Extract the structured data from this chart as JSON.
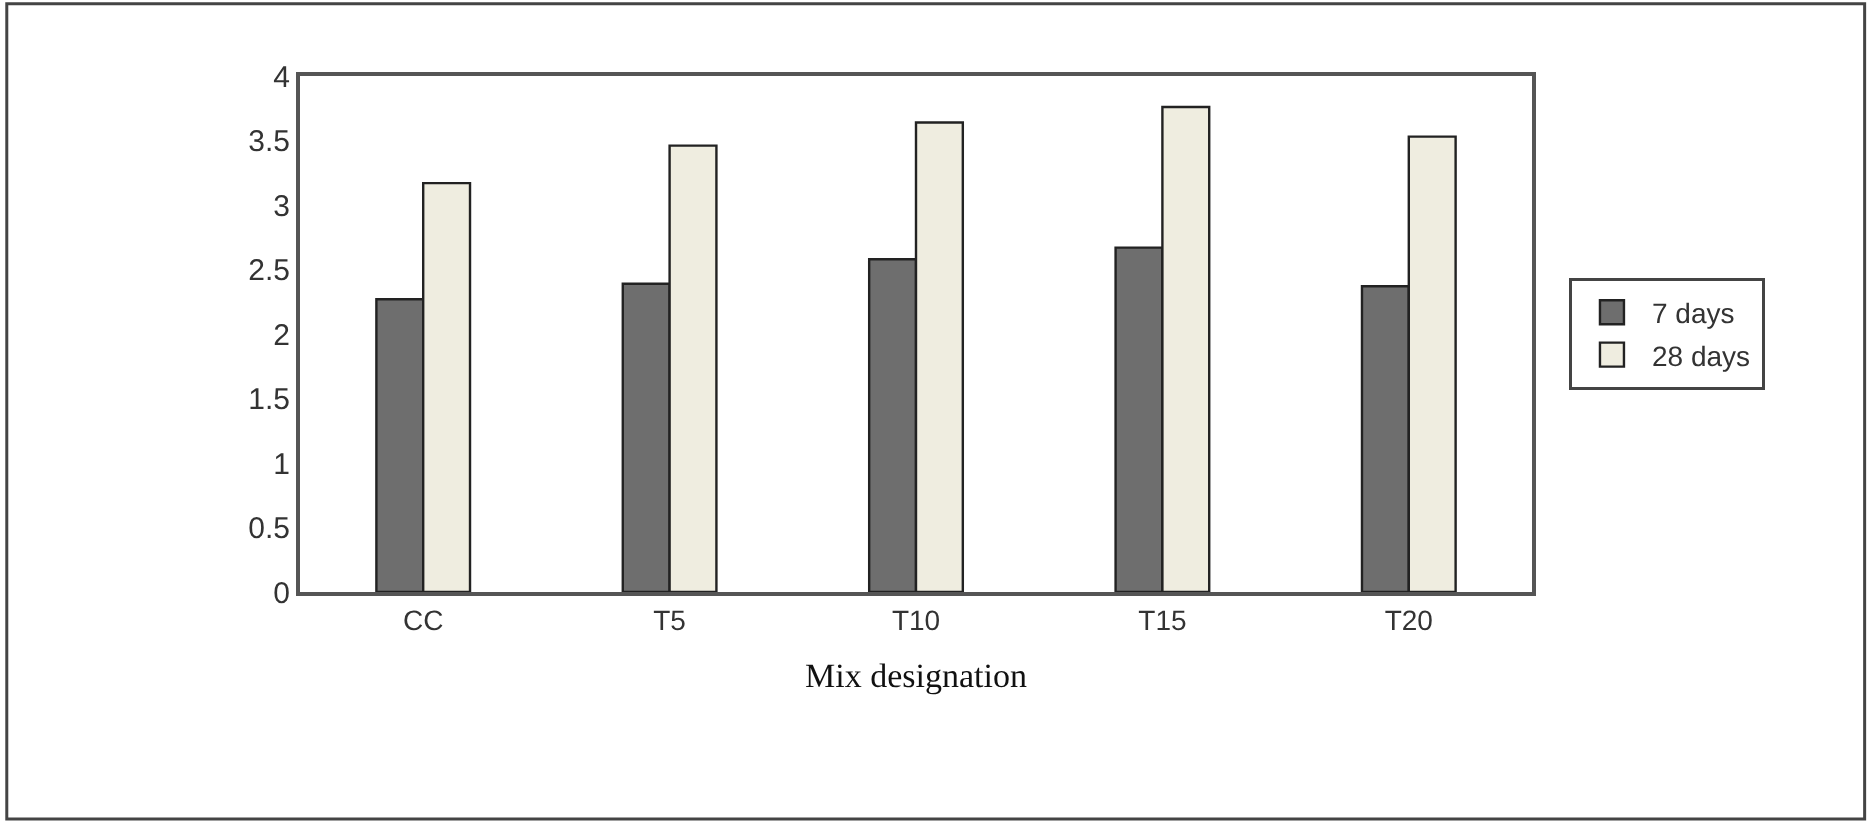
{
  "chart_data": {
    "type": "bar",
    "xlabel": "Mix designation",
    "categories": [
      "CC",
      "T5",
      "T10",
      "T15",
      "T20"
    ],
    "series": [
      {
        "name": "7 days",
        "color": "#6e6e6e",
        "values": [
          2.27,
          2.39,
          2.58,
          2.67,
          2.37
        ]
      },
      {
        "name": "28 days",
        "color": "#efede0",
        "values": [
          3.17,
          3.46,
          3.64,
          3.76,
          3.53
        ]
      }
    ],
    "ylim": [
      0,
      4
    ],
    "yticks": [
      0,
      0.5,
      1,
      1.5,
      2,
      2.5,
      3,
      3.5,
      4
    ],
    "legend": "right"
  }
}
